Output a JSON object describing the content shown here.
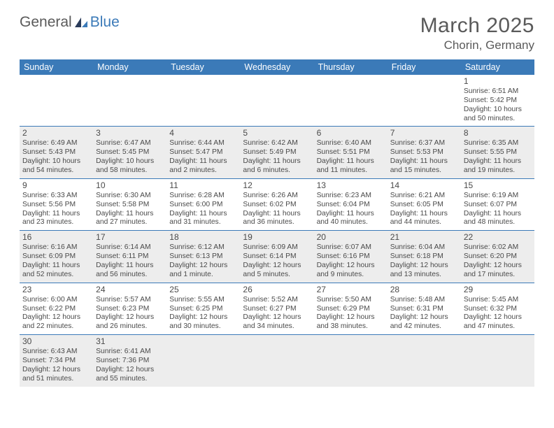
{
  "logo": {
    "text1": "General",
    "text2": "Blue"
  },
  "title": "March 2025",
  "location": "Chorin, Germany",
  "colors": {
    "header_bg": "#3b7ab8",
    "header_fg": "#ffffff",
    "alt_row_bg": "#ededed",
    "text": "#4a4a4a",
    "page_bg": "#ffffff"
  },
  "day_headers": [
    "Sunday",
    "Monday",
    "Tuesday",
    "Wednesday",
    "Thursday",
    "Friday",
    "Saturday"
  ],
  "weeks": [
    [
      null,
      null,
      null,
      null,
      null,
      null,
      {
        "n": "1",
        "sr": "Sunrise: 6:51 AM",
        "ss": "Sunset: 5:42 PM",
        "d1": "Daylight: 10 hours",
        "d2": "and 50 minutes."
      }
    ],
    [
      {
        "n": "2",
        "sr": "Sunrise: 6:49 AM",
        "ss": "Sunset: 5:43 PM",
        "d1": "Daylight: 10 hours",
        "d2": "and 54 minutes."
      },
      {
        "n": "3",
        "sr": "Sunrise: 6:47 AM",
        "ss": "Sunset: 5:45 PM",
        "d1": "Daylight: 10 hours",
        "d2": "and 58 minutes."
      },
      {
        "n": "4",
        "sr": "Sunrise: 6:44 AM",
        "ss": "Sunset: 5:47 PM",
        "d1": "Daylight: 11 hours",
        "d2": "and 2 minutes."
      },
      {
        "n": "5",
        "sr": "Sunrise: 6:42 AM",
        "ss": "Sunset: 5:49 PM",
        "d1": "Daylight: 11 hours",
        "d2": "and 6 minutes."
      },
      {
        "n": "6",
        "sr": "Sunrise: 6:40 AM",
        "ss": "Sunset: 5:51 PM",
        "d1": "Daylight: 11 hours",
        "d2": "and 11 minutes."
      },
      {
        "n": "7",
        "sr": "Sunrise: 6:37 AM",
        "ss": "Sunset: 5:53 PM",
        "d1": "Daylight: 11 hours",
        "d2": "and 15 minutes."
      },
      {
        "n": "8",
        "sr": "Sunrise: 6:35 AM",
        "ss": "Sunset: 5:55 PM",
        "d1": "Daylight: 11 hours",
        "d2": "and 19 minutes."
      }
    ],
    [
      {
        "n": "9",
        "sr": "Sunrise: 6:33 AM",
        "ss": "Sunset: 5:56 PM",
        "d1": "Daylight: 11 hours",
        "d2": "and 23 minutes."
      },
      {
        "n": "10",
        "sr": "Sunrise: 6:30 AM",
        "ss": "Sunset: 5:58 PM",
        "d1": "Daylight: 11 hours",
        "d2": "and 27 minutes."
      },
      {
        "n": "11",
        "sr": "Sunrise: 6:28 AM",
        "ss": "Sunset: 6:00 PM",
        "d1": "Daylight: 11 hours",
        "d2": "and 31 minutes."
      },
      {
        "n": "12",
        "sr": "Sunrise: 6:26 AM",
        "ss": "Sunset: 6:02 PM",
        "d1": "Daylight: 11 hours",
        "d2": "and 36 minutes."
      },
      {
        "n": "13",
        "sr": "Sunrise: 6:23 AM",
        "ss": "Sunset: 6:04 PM",
        "d1": "Daylight: 11 hours",
        "d2": "and 40 minutes."
      },
      {
        "n": "14",
        "sr": "Sunrise: 6:21 AM",
        "ss": "Sunset: 6:05 PM",
        "d1": "Daylight: 11 hours",
        "d2": "and 44 minutes."
      },
      {
        "n": "15",
        "sr": "Sunrise: 6:19 AM",
        "ss": "Sunset: 6:07 PM",
        "d1": "Daylight: 11 hours",
        "d2": "and 48 minutes."
      }
    ],
    [
      {
        "n": "16",
        "sr": "Sunrise: 6:16 AM",
        "ss": "Sunset: 6:09 PM",
        "d1": "Daylight: 11 hours",
        "d2": "and 52 minutes."
      },
      {
        "n": "17",
        "sr": "Sunrise: 6:14 AM",
        "ss": "Sunset: 6:11 PM",
        "d1": "Daylight: 11 hours",
        "d2": "and 56 minutes."
      },
      {
        "n": "18",
        "sr": "Sunrise: 6:12 AM",
        "ss": "Sunset: 6:13 PM",
        "d1": "Daylight: 12 hours",
        "d2": "and 1 minute."
      },
      {
        "n": "19",
        "sr": "Sunrise: 6:09 AM",
        "ss": "Sunset: 6:14 PM",
        "d1": "Daylight: 12 hours",
        "d2": "and 5 minutes."
      },
      {
        "n": "20",
        "sr": "Sunrise: 6:07 AM",
        "ss": "Sunset: 6:16 PM",
        "d1": "Daylight: 12 hours",
        "d2": "and 9 minutes."
      },
      {
        "n": "21",
        "sr": "Sunrise: 6:04 AM",
        "ss": "Sunset: 6:18 PM",
        "d1": "Daylight: 12 hours",
        "d2": "and 13 minutes."
      },
      {
        "n": "22",
        "sr": "Sunrise: 6:02 AM",
        "ss": "Sunset: 6:20 PM",
        "d1": "Daylight: 12 hours",
        "d2": "and 17 minutes."
      }
    ],
    [
      {
        "n": "23",
        "sr": "Sunrise: 6:00 AM",
        "ss": "Sunset: 6:22 PM",
        "d1": "Daylight: 12 hours",
        "d2": "and 22 minutes."
      },
      {
        "n": "24",
        "sr": "Sunrise: 5:57 AM",
        "ss": "Sunset: 6:23 PM",
        "d1": "Daylight: 12 hours",
        "d2": "and 26 minutes."
      },
      {
        "n": "25",
        "sr": "Sunrise: 5:55 AM",
        "ss": "Sunset: 6:25 PM",
        "d1": "Daylight: 12 hours",
        "d2": "and 30 minutes."
      },
      {
        "n": "26",
        "sr": "Sunrise: 5:52 AM",
        "ss": "Sunset: 6:27 PM",
        "d1": "Daylight: 12 hours",
        "d2": "and 34 minutes."
      },
      {
        "n": "27",
        "sr": "Sunrise: 5:50 AM",
        "ss": "Sunset: 6:29 PM",
        "d1": "Daylight: 12 hours",
        "d2": "and 38 minutes."
      },
      {
        "n": "28",
        "sr": "Sunrise: 5:48 AM",
        "ss": "Sunset: 6:31 PM",
        "d1": "Daylight: 12 hours",
        "d2": "and 42 minutes."
      },
      {
        "n": "29",
        "sr": "Sunrise: 5:45 AM",
        "ss": "Sunset: 6:32 PM",
        "d1": "Daylight: 12 hours",
        "d2": "and 47 minutes."
      }
    ],
    [
      {
        "n": "30",
        "sr": "Sunrise: 6:43 AM",
        "ss": "Sunset: 7:34 PM",
        "d1": "Daylight: 12 hours",
        "d2": "and 51 minutes."
      },
      {
        "n": "31",
        "sr": "Sunrise: 6:41 AM",
        "ss": "Sunset: 7:36 PM",
        "d1": "Daylight: 12 hours",
        "d2": "and 55 minutes."
      },
      null,
      null,
      null,
      null,
      null
    ]
  ]
}
